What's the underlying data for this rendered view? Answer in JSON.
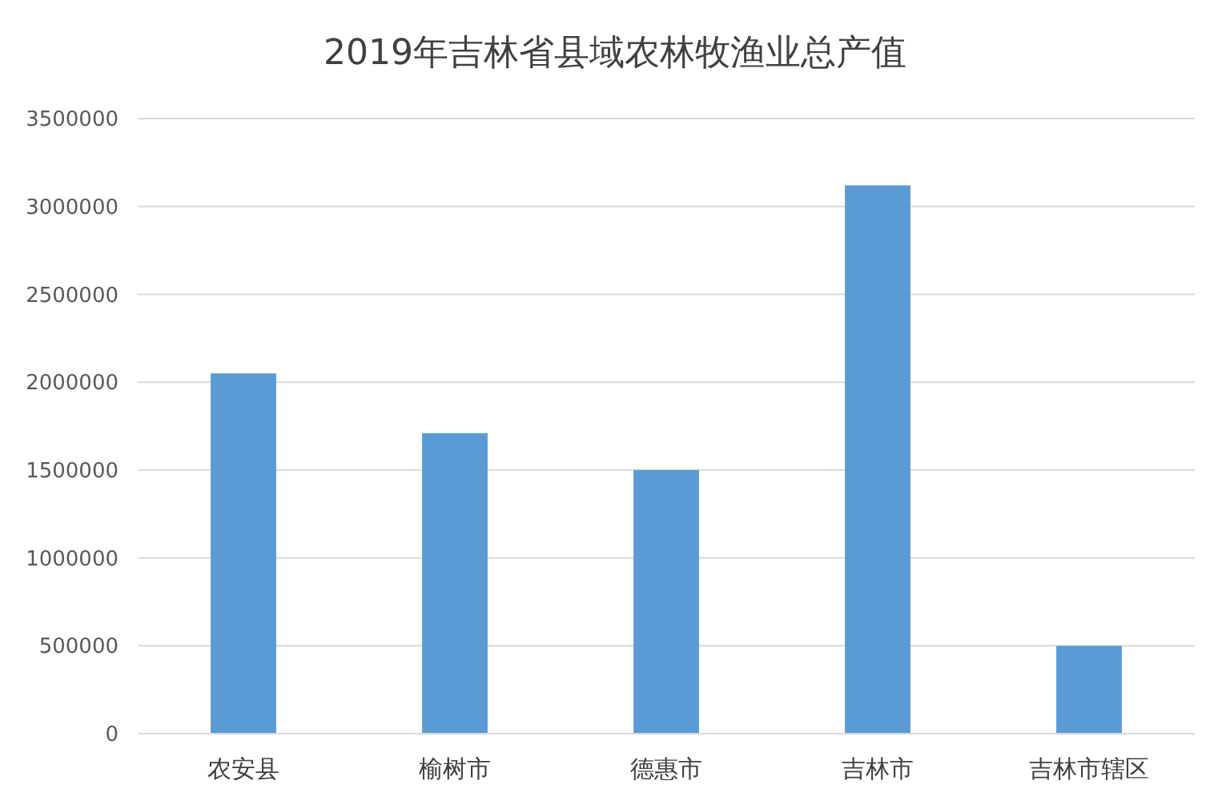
{
  "chart_data": {
    "type": "bar",
    "title": "2019年吉林省县域农林牧渔业总产值",
    "categories": [
      "农安县",
      "榆树市",
      "德惠市",
      "吉林市",
      "吉林市辖区"
    ],
    "values": [
      2050000,
      1710000,
      1500000,
      3120000,
      500000
    ],
    "color": "#5b9bd5",
    "ylim": [
      0,
      3500000
    ],
    "yticks": [
      0,
      500000,
      1000000,
      1500000,
      2000000,
      2500000,
      3000000,
      3500000
    ],
    "grid": "y"
  }
}
